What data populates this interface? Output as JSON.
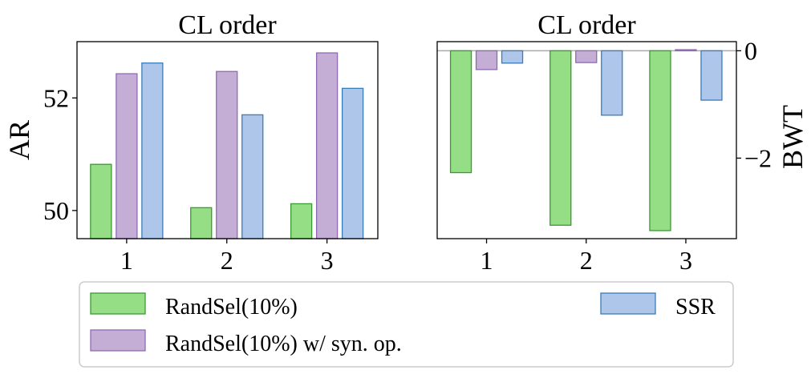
{
  "chart_data": [
    {
      "type": "bar",
      "title": "CL order",
      "ylabel": "AR",
      "categories": [
        "1",
        "2",
        "3"
      ],
      "ylim": [
        49.5,
        53.0
      ],
      "yticks": [
        50,
        52
      ],
      "series": [
        {
          "name": "RandSel(10%)",
          "values": [
            50.82,
            50.05,
            50.12
          ]
        },
        {
          "name": "RandSel(10%) w/ syn. op.",
          "values": [
            52.43,
            52.47,
            52.8
          ]
        },
        {
          "name": "SSR",
          "values": [
            52.62,
            51.7,
            52.17
          ]
        }
      ]
    },
    {
      "type": "bar",
      "title": "CL order",
      "ylabel": "BWT",
      "yaxis_side": "right",
      "categories": [
        "1",
        "2",
        "3"
      ],
      "ylim": [
        -3.5,
        0.17
      ],
      "yticks": [
        0,
        -2
      ],
      "ytick_labels": [
        "0",
        "−2"
      ],
      "series": [
        {
          "name": "RandSel(10%)",
          "values": [
            -2.27,
            -3.25,
            -3.35
          ]
        },
        {
          "name": "RandSel(10%) w/ syn. op.",
          "values": [
            -0.35,
            -0.22,
            0.02
          ]
        },
        {
          "name": "SSR",
          "values": [
            -0.23,
            -1.2,
            -0.92
          ]
        }
      ]
    }
  ],
  "legend": [
    {
      "name": "RandSel(10%)",
      "fill": "#95de85",
      "stroke": "#3a9a33"
    },
    {
      "name": "RandSel(10%) w/ syn. op.",
      "fill": "#c4aed6",
      "stroke": "#8f6ab3"
    },
    {
      "name": "SSR",
      "fill": "#aec6e9",
      "stroke": "#3a7cb8"
    }
  ]
}
